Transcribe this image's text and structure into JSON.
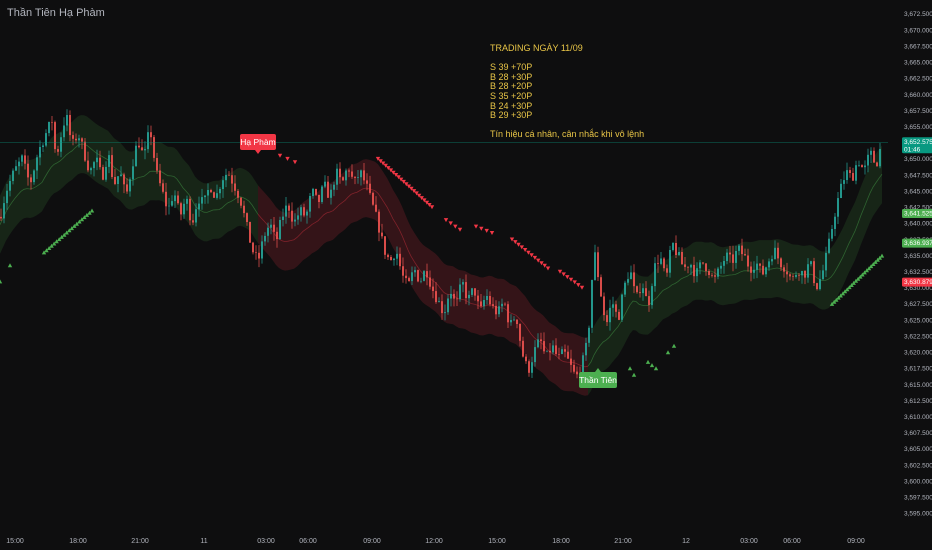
{
  "header": {
    "symbol_title": "Thần Tiên Hạ Phàm"
  },
  "notes": {
    "title": "TRADING NGÀY 11/09",
    "trades": [
      "S 39 +70P",
      "B 28 +30P",
      "B 28 +20P",
      "S 35 +20P",
      "B 24 +30P",
      "B 29 +30P"
    ],
    "disclaimer": "Tín hiệu cá nhân, cân nhắc khi vô lệnh"
  },
  "signals": [
    {
      "label": "Hạ Phàm",
      "kind": "sell",
      "color": "#f23645",
      "time": "01:00",
      "price": 3652.5
    },
    {
      "label": "Thần Tiên",
      "kind": "buy",
      "color": "#4caf50",
      "time": "19:30",
      "price": 3616.0
    }
  ],
  "price_tags": [
    {
      "value": "3,652.575",
      "sub": "01:46",
      "bg": "#089981",
      "fg": "#ffffff",
      "price": 3652.575
    },
    {
      "value": "3,641.525",
      "bg": "#4caf50",
      "fg": "#ffffff",
      "price": 3641.525
    },
    {
      "value": "3,636.937",
      "bg": "#4caf50",
      "fg": "#ffffff",
      "price": 3636.937
    },
    {
      "value": "3,630.879",
      "bg": "#f23645",
      "fg": "#ffffff",
      "price": 3630.879
    }
  ],
  "colors": {
    "up": "#26a69a",
    "down": "#ef5350",
    "sell_arrow": "#f23645",
    "buy_arrow": "#4caf50",
    "grid": "#1c1c1f",
    "axis_text": "#b2b5be"
  },
  "chart_data": {
    "type": "candlestick",
    "title": "",
    "xlabel": "",
    "ylabel": "",
    "ylim": [
      3593.5,
      3673.5
    ],
    "grid": false,
    "y_ticks": [
      "3,672.500",
      "3,670.000",
      "3,667.500",
      "3,665.000",
      "3,662.500",
      "3,660.000",
      "3,657.500",
      "3,655.000",
      "3,652.500",
      "3,650.000",
      "3,647.500",
      "3,645.000",
      "3,642.500",
      "3,640.000",
      "3,637.500",
      "3,635.000",
      "3,632.500",
      "3,630.000",
      "3,627.500",
      "3,625.000",
      "3,622.500",
      "3,620.000",
      "3,617.500",
      "3,615.000",
      "3,612.500",
      "3,610.000",
      "3,607.500",
      "3,605.000",
      "3,602.500",
      "3,600.000",
      "3,597.500",
      "3,595.000"
    ],
    "x_ticks": [
      "15:00",
      "18:00",
      "21:00",
      "11",
      "03:00",
      "06:00",
      "09:00",
      "12:00",
      "15:00",
      "18:00",
      "21:00",
      "12",
      "03:00",
      "06:00",
      "09:00"
    ],
    "close_path": [
      [
        0,
        3641
      ],
      [
        6,
        3645
      ],
      [
        14,
        3648
      ],
      [
        22,
        3650
      ],
      [
        30,
        3646
      ],
      [
        38,
        3651
      ],
      [
        46,
        3654
      ],
      [
        52,
        3656
      ],
      [
        56,
        3650
      ],
      [
        60,
        3653
      ],
      [
        66,
        3657
      ],
      [
        72,
        3652
      ],
      [
        78,
        3654
      ],
      [
        84,
        3651
      ],
      [
        90,
        3648
      ],
      [
        96,
        3650
      ],
      [
        102,
        3647
      ],
      [
        108,
        3651
      ],
      [
        114,
        3646
      ],
      [
        120,
        3648
      ],
      [
        126,
        3644
      ],
      [
        132,
        3649
      ],
      [
        138,
        3653
      ],
      [
        144,
        3650
      ],
      [
        150,
        3655
      ],
      [
        156,
        3648
      ],
      [
        162,
        3645
      ],
      [
        168,
        3642
      ],
      [
        174,
        3645
      ],
      [
        180,
        3641
      ],
      [
        186,
        3644
      ],
      [
        192,
        3640
      ],
      [
        198,
        3644
      ],
      [
        204,
        3643
      ],
      [
        210,
        3646
      ],
      [
        216,
        3644
      ],
      [
        222,
        3647
      ],
      [
        228,
        3648
      ],
      [
        234,
        3646
      ],
      [
        240,
        3644
      ],
      [
        246,
        3640
      ],
      [
        252,
        3636
      ],
      [
        258,
        3634
      ],
      [
        264,
        3638
      ],
      [
        270,
        3640
      ],
      [
        276,
        3637
      ],
      [
        282,
        3641
      ],
      [
        288,
        3643
      ],
      [
        294,
        3640
      ],
      [
        300,
        3642
      ],
      [
        306,
        3641
      ],
      [
        312,
        3645
      ],
      [
        318,
        3643
      ],
      [
        324,
        3646
      ],
      [
        330,
        3644
      ],
      [
        336,
        3648
      ],
      [
        342,
        3646
      ],
      [
        348,
        3649
      ],
      [
        354,
        3646
      ],
      [
        360,
        3648
      ],
      [
        366,
        3646
      ],
      [
        372,
        3643
      ],
      [
        378,
        3640
      ],
      [
        384,
        3636
      ],
      [
        390,
        3634
      ],
      [
        396,
        3636
      ],
      [
        402,
        3632
      ],
      [
        408,
        3630
      ],
      [
        414,
        3633
      ],
      [
        420,
        3631
      ],
      [
        426,
        3633
      ],
      [
        432,
        3630
      ],
      [
        438,
        3628
      ],
      [
        444,
        3626
      ],
      [
        450,
        3630
      ],
      [
        456,
        3627
      ],
      [
        462,
        3631
      ],
      [
        468,
        3628
      ],
      [
        474,
        3630
      ],
      [
        480,
        3626
      ],
      [
        486,
        3629
      ],
      [
        492,
        3627
      ],
      [
        498,
        3626
      ],
      [
        504,
        3628
      ],
      [
        510,
        3624
      ],
      [
        516,
        3626
      ],
      [
        522,
        3620
      ],
      [
        528,
        3617
      ],
      [
        534,
        3620
      ],
      [
        540,
        3622
      ],
      [
        546,
        3619
      ],
      [
        552,
        3621
      ],
      [
        558,
        3619
      ],
      [
        564,
        3620
      ],
      [
        570,
        3618
      ],
      [
        576,
        3616
      ],
      [
        582,
        3618
      ],
      [
        588,
        3622
      ],
      [
        594,
        3636
      ],
      [
        600,
        3630
      ],
      [
        606,
        3624
      ],
      [
        612,
        3628
      ],
      [
        618,
        3625
      ],
      [
        624,
        3630
      ],
      [
        630,
        3633
      ],
      [
        636,
        3628
      ],
      [
        642,
        3631
      ],
      [
        648,
        3627
      ],
      [
        654,
        3633
      ],
      [
        660,
        3635
      ],
      [
        666,
        3631
      ],
      [
        672,
        3637
      ],
      [
        678,
        3635
      ],
      [
        684,
        3633
      ],
      [
        690,
        3634
      ],
      [
        696,
        3632
      ],
      [
        702,
        3634
      ],
      [
        708,
        3633
      ],
      [
        714,
        3631
      ],
      [
        720,
        3633
      ],
      [
        726,
        3635
      ],
      [
        732,
        3634
      ],
      [
        738,
        3636
      ],
      [
        744,
        3635
      ],
      [
        750,
        3633
      ],
      [
        756,
        3634
      ],
      [
        762,
        3632
      ],
      [
        768,
        3634
      ],
      [
        774,
        3636
      ],
      [
        780,
        3634
      ],
      [
        786,
        3633
      ],
      [
        792,
        3631
      ],
      [
        798,
        3633
      ],
      [
        804,
        3632
      ],
      [
        810,
        3634
      ],
      [
        816,
        3630
      ],
      [
        822,
        3632
      ],
      [
        828,
        3636
      ],
      [
        834,
        3641
      ],
      [
        840,
        3645
      ],
      [
        846,
        3648
      ],
      [
        852,
        3647
      ],
      [
        858,
        3650
      ],
      [
        864,
        3648
      ],
      [
        870,
        3651
      ],
      [
        876,
        3649
      ],
      [
        882,
        3652.6
      ]
    ]
  }
}
